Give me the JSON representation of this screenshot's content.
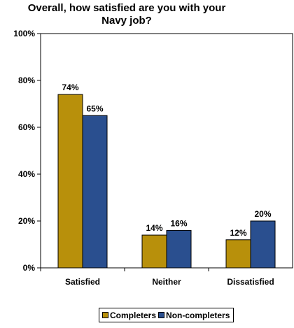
{
  "chart_data": {
    "type": "bar",
    "title_lines": [
      "Overall, how satisfied are you with your",
      "Navy job?"
    ],
    "categories": [
      "Satisfied",
      "Neither",
      "Dissatisfied"
    ],
    "series": [
      {
        "name": "Completers",
        "values": [
          74,
          14,
          12
        ],
        "labels": [
          "74%",
          "14%",
          "12%"
        ],
        "color": "#b8900b"
      },
      {
        "name": "Non-completers",
        "values": [
          65,
          16,
          20
        ],
        "labels": [
          "65%",
          "16%",
          "20%"
        ],
        "color": "#2a4f8f"
      }
    ],
    "ylim": [
      0,
      100
    ],
    "yticks": [
      0,
      20,
      40,
      60,
      80,
      100
    ],
    "ytick_labels": [
      "0%",
      "20%",
      "40%",
      "60%",
      "80%",
      "100%"
    ],
    "xlabel": "",
    "ylabel": "",
    "grid": false,
    "legend_position": "bottom"
  }
}
